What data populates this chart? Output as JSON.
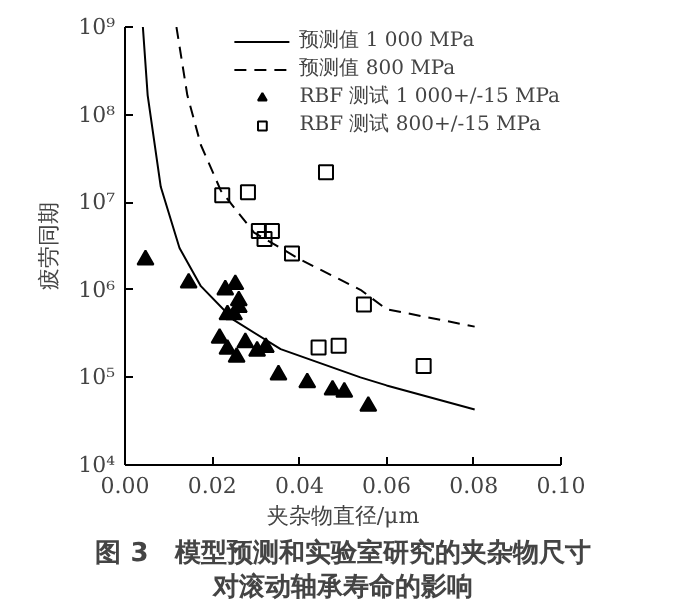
{
  "chart_data": {
    "type": "scatter",
    "title": "图 3　模型预测和实验室研究的夹杂物尺寸对滚动轴承寿命的影响",
    "xlabel": "夹杂物直径/μm",
    "ylabel": "疲劳同期",
    "log": "y",
    "legend": "top right",
    "xlim": [
      0,
      0.1
    ],
    "xticks": [
      {
        "value": 0,
        "label": "0.00"
      },
      {
        "value": 0.02,
        "label": "0.02"
      },
      {
        "value": 0.04,
        "label": "0.04"
      },
      {
        "value": 0.06,
        "label": "0.06"
      },
      {
        "value": 0.08,
        "label": "0.08"
      },
      {
        "value": 0.1,
        "label": "0.10"
      }
    ],
    "ylim": [
      10000,
      1000000000
    ],
    "yticks": [
      {
        "value": 10000,
        "label": "10⁴"
      },
      {
        "value": 100000,
        "label": "10⁵"
      },
      {
        "value": 1000000,
        "label": "10⁶"
      },
      {
        "value": 10000000,
        "label": "10⁷"
      },
      {
        "value": 100000000,
        "label": "10⁸"
      },
      {
        "value": 1000000000,
        "label": "10⁹"
      }
    ],
    "series": [
      {
        "name": "预测值 1 000 MPa",
        "type": "line",
        "line_style": "solid",
        "marker": "none",
        "color": "#000000",
        "x": [
          0.0041,
          0.0052,
          0.0082,
          0.0125,
          0.0174,
          0.025,
          0.0357,
          0.054,
          0.06,
          0.0802
        ],
        "values": [
          1000000000,
          166000000,
          15000000,
          3000000,
          1100000,
          450000,
          210000,
          100000,
          81000,
          43000
        ]
      },
      {
        "name": "预测值 800 MPa",
        "type": "line",
        "line_style": "dashed",
        "marker": "none",
        "color": "#000000",
        "x": [
          0.0118,
          0.0143,
          0.0174,
          0.022,
          0.0296,
          0.0403,
          0.054,
          0.06,
          0.0802
        ],
        "values": [
          1000000000,
          166000000,
          45000000,
          13500000,
          4500000,
          2200000,
          1000000,
          600000,
          380000
        ]
      },
      {
        "name": "RBF 测试 1 000+/-15 MPa",
        "marker": "triangle",
        "color": "#000000",
        "x": [
          0.0047,
          0.0146,
          0.023,
          0.0253,
          0.0261,
          0.0261,
          0.0235,
          0.025,
          0.0217,
          0.0235,
          0.0276,
          0.0256,
          0.0303,
          0.0323,
          0.0352,
          0.0418,
          0.0476,
          0.0503,
          0.0558
        ],
        "values": [
          2200000,
          1200000,
          1000000,
          1150000,
          750000,
          630000,
          520000,
          520000,
          280000,
          210000,
          250000,
          170000,
          200000,
          220000,
          107000,
          87000,
          72000,
          68000,
          47000
        ]
      },
      {
        "name": "RBF 测试 800+/-15 MPa",
        "marker": "square",
        "color": "#000000",
        "x": [
          0.0223,
          0.0282,
          0.0461,
          0.0307,
          0.0337,
          0.032,
          0.0383,
          0.0444,
          0.049,
          0.0548,
          0.0685
        ],
        "values": [
          12000000,
          13000000,
          22000000,
          4700000,
          4700000,
          3800000,
          2600000,
          220000,
          230000,
          680000,
          135000
        ]
      }
    ]
  }
}
